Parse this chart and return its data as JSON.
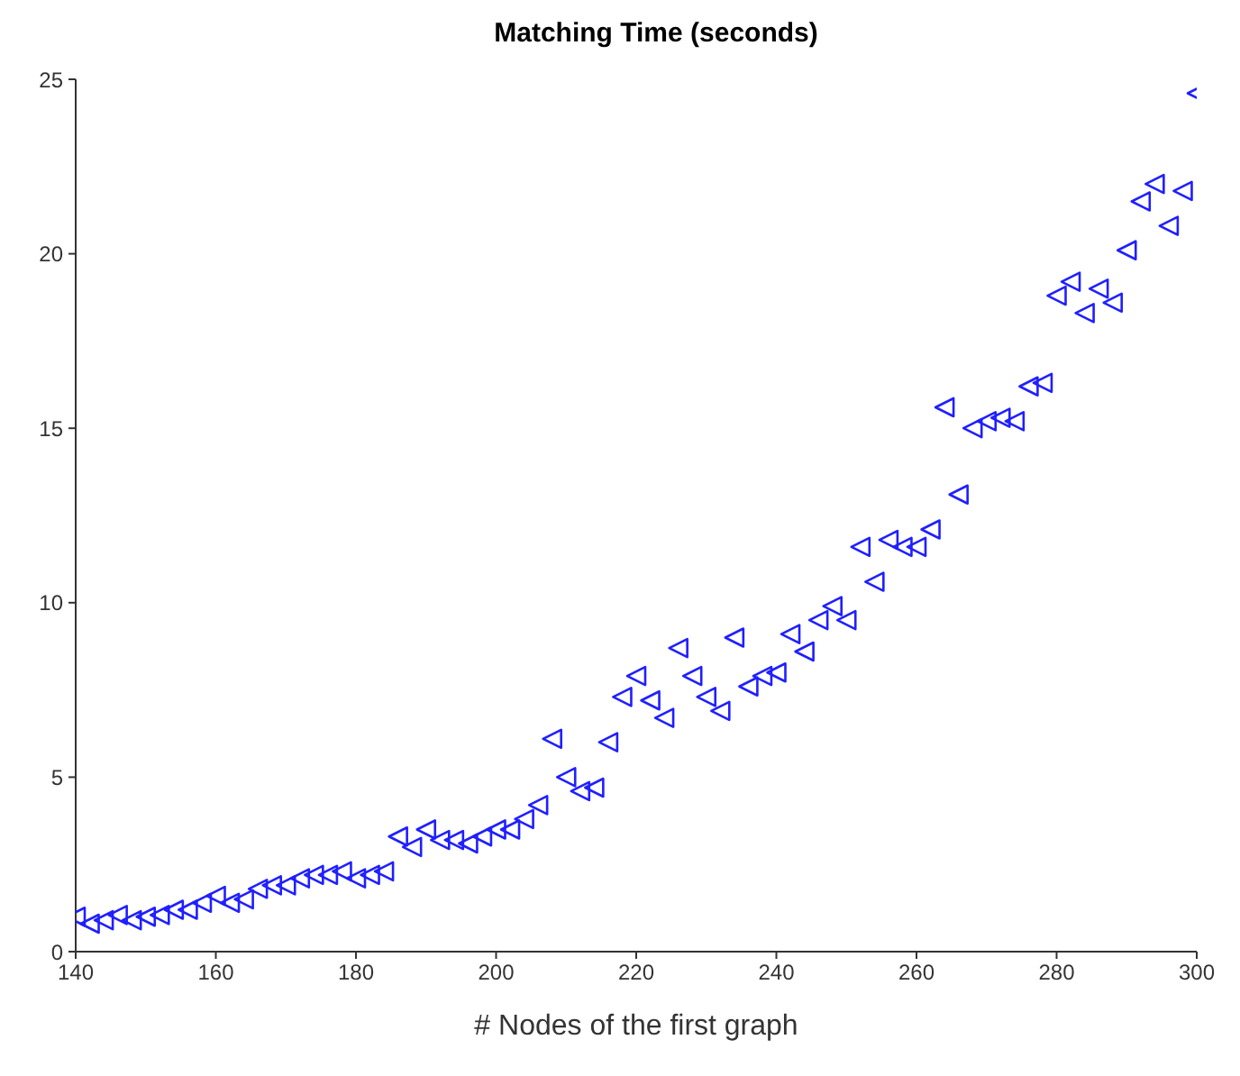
{
  "chart_data": {
    "type": "scatter",
    "title": "Matching Time (seconds)",
    "xlabel": "# Nodes of the first graph",
    "x": [
      140,
      142,
      144,
      146,
      148,
      150,
      152,
      154,
      156,
      158,
      160,
      162,
      164,
      166,
      168,
      170,
      172,
      174,
      176,
      178,
      180,
      182,
      184,
      186,
      188,
      190,
      192,
      194,
      196,
      198,
      200,
      202,
      204,
      206,
      208,
      210,
      212,
      214,
      216,
      218,
      220,
      222,
      224,
      226,
      228,
      230,
      232,
      234,
      236,
      238,
      240,
      242,
      244,
      246,
      248,
      250,
      252,
      254,
      256,
      258,
      260,
      262,
      264,
      266,
      268,
      270,
      272,
      274,
      276,
      278,
      280,
      282,
      284,
      286,
      288,
      290,
      292,
      294,
      296,
      298,
      300
    ],
    "series": [
      {
        "color": "#1f1fff",
        "values": [
          1.0,
          0.8,
          0.9,
          1.05,
          0.9,
          1.0,
          1.05,
          1.2,
          1.2,
          1.4,
          1.6,
          1.4,
          1.5,
          1.8,
          1.9,
          1.9,
          2.1,
          2.2,
          2.2,
          2.3,
          2.1,
          2.2,
          2.3,
          3.3,
          3.0,
          3.5,
          3.2,
          3.2,
          3.1,
          3.3,
          3.5,
          3.5,
          3.8,
          4.2,
          6.1,
          5.0,
          4.6,
          4.7,
          6.0,
          7.3,
          7.9,
          7.2,
          6.7,
          8.7,
          7.9,
          7.3,
          6.9,
          9.0,
          7.6,
          7.9,
          8.0,
          9.1,
          8.6,
          9.5,
          9.9,
          9.5,
          11.6,
          10.6,
          11.8,
          11.6,
          11.6,
          12.1,
          15.6,
          13.1,
          15.0,
          15.2,
          15.3,
          15.2,
          16.2,
          16.3,
          18.8,
          19.2,
          18.3,
          19.0,
          18.6,
          20.1,
          21.5,
          22.0,
          20.8,
          21.8,
          24.6
        ]
      }
    ],
    "xlim": [
      140,
      300
    ],
    "xticks": [
      140,
      160,
      180,
      200,
      220,
      240,
      260,
      280,
      300
    ],
    "ylim": [
      0,
      25
    ],
    "yticks": [
      0,
      5,
      10,
      15,
      20,
      25
    ],
    "marker": "triangle",
    "grid": false,
    "legend": false
  }
}
